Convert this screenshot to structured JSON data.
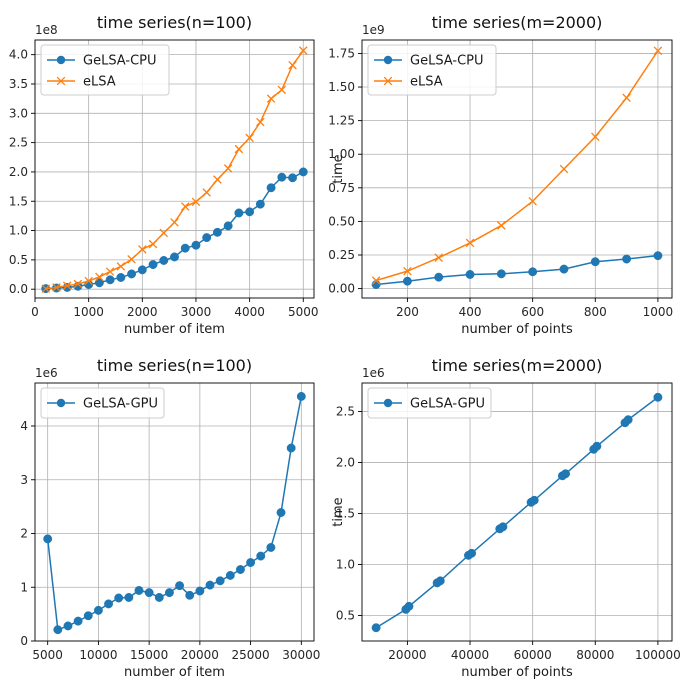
{
  "colors": {
    "cpu": "#1f77b4",
    "elsa": "#ff7f0e",
    "gpu": "#1f77b4"
  },
  "chart_data": [
    {
      "type": "line",
      "title": "time series(n=100)",
      "xlabel": "number of item",
      "ylabel": "",
      "offset_text": "1e8",
      "xlim": [
        0,
        5200
      ],
      "ylim": [
        -0.15,
        4.25
      ],
      "xticks": [
        0,
        1000,
        2000,
        3000,
        4000,
        5000
      ],
      "xtick_labels": [
        "0",
        "1000",
        "2000",
        "3000",
        "4000",
        "5000"
      ],
      "yticks": [
        0,
        0.5,
        1.0,
        1.5,
        2.0,
        2.5,
        3.0,
        3.5,
        4.0
      ],
      "ytick_labels": [
        "0.0",
        "0.5",
        "1.0",
        "1.5",
        "2.0",
        "2.5",
        "3.0",
        "3.5",
        "4.0"
      ],
      "x": [
        200,
        400,
        600,
        800,
        1000,
        1200,
        1400,
        1600,
        1800,
        2000,
        2200,
        2400,
        2600,
        2800,
        3000,
        3200,
        3400,
        3600,
        3800,
        4000,
        4200,
        4400,
        4600,
        4800,
        5000
      ],
      "series": [
        {
          "name": "GeLSA-CPU",
          "marker": "o",
          "color_key": "cpu",
          "values": [
            0.01,
            0.02,
            0.03,
            0.05,
            0.08,
            0.11,
            0.16,
            0.2,
            0.26,
            0.33,
            0.42,
            0.49,
            0.55,
            0.7,
            0.75,
            0.88,
            0.97,
            1.08,
            1.3,
            1.32,
            1.45,
            1.73,
            1.91,
            1.9,
            2.0
          ]
        },
        {
          "name": "eLSA",
          "marker": "x",
          "color_key": "elsa",
          "values": [
            0.01,
            0.03,
            0.06,
            0.09,
            0.14,
            0.21,
            0.3,
            0.39,
            0.51,
            0.68,
            0.77,
            0.96,
            1.14,
            1.41,
            1.49,
            1.65,
            1.87,
            2.06,
            2.39,
            2.58,
            2.85,
            3.25,
            3.4,
            3.82,
            4.07
          ]
        }
      ],
      "legend": "upper-left",
      "grid": true
    },
    {
      "type": "line",
      "title": "time series(m=2000)",
      "xlabel": "number of points",
      "ylabel": "time",
      "offset_text": "1e9",
      "xlim": [
        55,
        1045
      ],
      "ylim": [
        -0.07,
        1.85
      ],
      "xticks": [
        200,
        400,
        600,
        800,
        1000
      ],
      "xtick_labels": [
        "200",
        "400",
        "600",
        "800",
        "1000"
      ],
      "yticks": [
        0,
        0.25,
        0.5,
        0.75,
        1.0,
        1.25,
        1.5,
        1.75
      ],
      "ytick_labels": [
        "0.00",
        "0.25",
        "0.50",
        "0.75",
        "1.00",
        "1.25",
        "1.50",
        "1.75"
      ],
      "x": [
        100,
        200,
        300,
        400,
        500,
        600,
        700,
        800,
        900,
        1000
      ],
      "series": [
        {
          "name": "GeLSA-CPU",
          "marker": "o",
          "color_key": "cpu",
          "values": [
            0.03,
            0.055,
            0.085,
            0.105,
            0.11,
            0.125,
            0.145,
            0.2,
            0.22,
            0.245
          ]
        },
        {
          "name": "eLSA",
          "marker": "x",
          "color_key": "elsa",
          "values": [
            0.06,
            0.13,
            0.23,
            0.34,
            0.47,
            0.65,
            0.89,
            1.13,
            1.42,
            1.77
          ]
        }
      ],
      "legend": "upper-left",
      "grid": true
    },
    {
      "type": "line",
      "title": "time series(n=100)",
      "xlabel": "number of item",
      "ylabel": "",
      "offset_text": "1e6",
      "xlim": [
        3750,
        31250
      ],
      "ylim": [
        0,
        4.8
      ],
      "xticks": [
        5000,
        10000,
        15000,
        20000,
        25000,
        30000
      ],
      "xtick_labels": [
        "5000",
        "10000",
        "15000",
        "20000",
        "25000",
        "30000"
      ],
      "yticks": [
        0,
        1,
        2,
        3,
        4
      ],
      "ytick_labels": [
        "0",
        "1",
        "2",
        "3",
        "4"
      ],
      "x": [
        5000,
        6000,
        7000,
        8000,
        9000,
        10000,
        11000,
        12000,
        13000,
        14000,
        15000,
        16000,
        17000,
        18000,
        19000,
        20000,
        21000,
        22000,
        23000,
        24000,
        25000,
        26000,
        27000,
        28000,
        29000,
        30000
      ],
      "series": [
        {
          "name": "GeLSA-GPU",
          "marker": "o",
          "color_key": "gpu",
          "values": [
            1.9,
            0.21,
            0.28,
            0.37,
            0.47,
            0.57,
            0.69,
            0.8,
            0.81,
            0.94,
            0.9,
            0.81,
            0.9,
            1.03,
            0.85,
            0.93,
            1.04,
            1.12,
            1.22,
            1.33,
            1.46,
            1.58,
            1.74,
            2.39,
            3.59,
            4.55
          ]
        }
      ],
      "legend": "upper-left",
      "grid": true
    },
    {
      "type": "line",
      "title": "time series(m=2000)",
      "xlabel": "number of points",
      "ylabel": "time",
      "offset_text": "1e6",
      "xlim": [
        5500,
        104500
      ],
      "ylim": [
        0.25,
        2.78
      ],
      "xticks": [
        20000,
        40000,
        60000,
        80000,
        100000
      ],
      "xtick_labels": [
        "20000",
        "40000",
        "60000",
        "80000",
        "100000"
      ],
      "yticks": [
        0.5,
        1.0,
        1.5,
        2.0,
        2.5
      ],
      "ytick_labels": [
        "0.5",
        "1.0",
        "1.5",
        "2.0",
        "2.5"
      ],
      "x": [
        10000,
        19500,
        20500,
        29500,
        30500,
        39500,
        40500,
        49500,
        50500,
        59500,
        60500,
        69500,
        70500,
        79500,
        80500,
        89500,
        90500,
        100000
      ],
      "series": [
        {
          "name": "GeLSA-GPU",
          "marker": "o",
          "color_key": "gpu",
          "values": [
            0.38,
            0.56,
            0.59,
            0.82,
            0.84,
            1.09,
            1.11,
            1.35,
            1.37,
            1.61,
            1.63,
            1.87,
            1.89,
            2.13,
            2.16,
            2.39,
            2.42,
            2.64
          ]
        }
      ],
      "legend": "upper-left",
      "grid": true
    }
  ]
}
